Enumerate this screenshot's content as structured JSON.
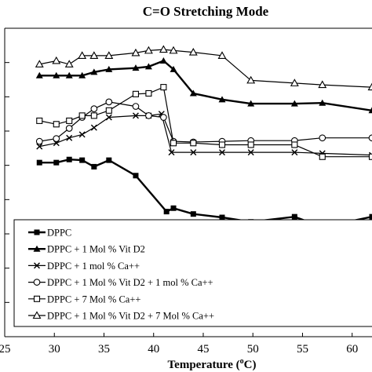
{
  "chart_data": {
    "type": "line",
    "title": "C=O Stretching Mode",
    "xlabel": "Temperature (°C)",
    "xlabel_parts": {
      "main": "Temperature (",
      "sup": "o",
      "tail": "C)"
    },
    "ylabel": "",
    "xlim": [
      25,
      62
    ],
    "ylim": [
      0,
      9
    ],
    "xticks": [
      25,
      30,
      35,
      40,
      45,
      50,
      55,
      60
    ],
    "xtick_labels": [
      "25",
      "30",
      "35",
      "40",
      "45",
      "50",
      "55",
      "60"
    ],
    "legend_position": "lower-left",
    "grid": false,
    "series": [
      {
        "name": "DPPC",
        "marker": "filled-square",
        "x": [
          28.5,
          30.2,
          31.5,
          32.8,
          34,
          35.5,
          38.2,
          41.3,
          42,
          44,
          46.9,
          49.8,
          54.2,
          57,
          62
        ],
        "y": [
          5.08,
          5.08,
          5.17,
          5.15,
          4.96,
          5.15,
          4.7,
          3.65,
          3.75,
          3.58,
          3.48,
          3.35,
          3.5,
          3.2,
          3.5
        ]
      },
      {
        "name": "DPPC + 1 Mol % Vit D2",
        "marker": "filled-triangle",
        "x": [
          28.5,
          30.2,
          31.5,
          32.8,
          34,
          35.5,
          38.2,
          39.5,
          41,
          42,
          44,
          46.9,
          49.8,
          54.2,
          57,
          62
        ],
        "y": [
          7.62,
          7.62,
          7.62,
          7.62,
          7.72,
          7.8,
          7.84,
          7.88,
          8.05,
          7.8,
          7.1,
          6.92,
          6.8,
          6.8,
          6.82,
          6.6
        ]
      },
      {
        "name": "DPPC + 1 mol % Ca++",
        "marker": "x",
        "x": [
          28.5,
          30.2,
          31.5,
          32.8,
          34,
          35.5,
          38.2,
          39.5,
          40.8,
          41.8,
          44,
          46.9,
          49.8,
          54.2,
          57,
          62
        ],
        "y": [
          5.55,
          5.65,
          5.8,
          5.9,
          6.1,
          6.4,
          6.45,
          6.45,
          6.5,
          5.38,
          5.38,
          5.38,
          5.38,
          5.38,
          5.35,
          5.3
        ]
      },
      {
        "name": "DPPC + 1 Mol % Vit D2 + 1 mol % Ca++",
        "marker": "open-circle",
        "x": [
          28.5,
          30.2,
          31.5,
          32.8,
          34,
          35.5,
          38.2,
          39.5,
          41,
          42,
          44,
          46.9,
          49.8,
          54.2,
          57,
          62
        ],
        "y": [
          5.7,
          5.78,
          6.08,
          6.4,
          6.65,
          6.85,
          6.72,
          6.45,
          6.4,
          5.7,
          5.68,
          5.7,
          5.72,
          5.72,
          5.8,
          5.8
        ]
      },
      {
        "name": "DPPC + 7  Mol % Ca++",
        "marker": "open-square",
        "x": [
          28.5,
          30.2,
          31.5,
          32.8,
          34,
          35.5,
          38.2,
          39.5,
          41,
          42,
          44,
          46.9,
          49.8,
          54.2,
          57,
          62
        ],
        "y": [
          6.3,
          6.2,
          6.3,
          6.45,
          6.45,
          6.6,
          7.08,
          7.1,
          7.28,
          5.65,
          5.65,
          5.6,
          5.6,
          5.6,
          5.25,
          5.25
        ]
      },
      {
        "name": "DPPC + 1 Mol % Vit D2 + 7 Mol % Ca++",
        "marker": "open-triangle",
        "x": [
          28.5,
          30.2,
          31.5,
          32.8,
          34,
          35.5,
          38.2,
          39.5,
          41,
          42,
          44,
          46.9,
          49.8,
          54.2,
          57,
          62
        ],
        "y": [
          7.95,
          8.05,
          7.95,
          8.2,
          8.2,
          8.2,
          8.28,
          8.35,
          8.38,
          8.35,
          8.3,
          8.2,
          7.48,
          7.4,
          7.35,
          7.28
        ]
      }
    ]
  }
}
